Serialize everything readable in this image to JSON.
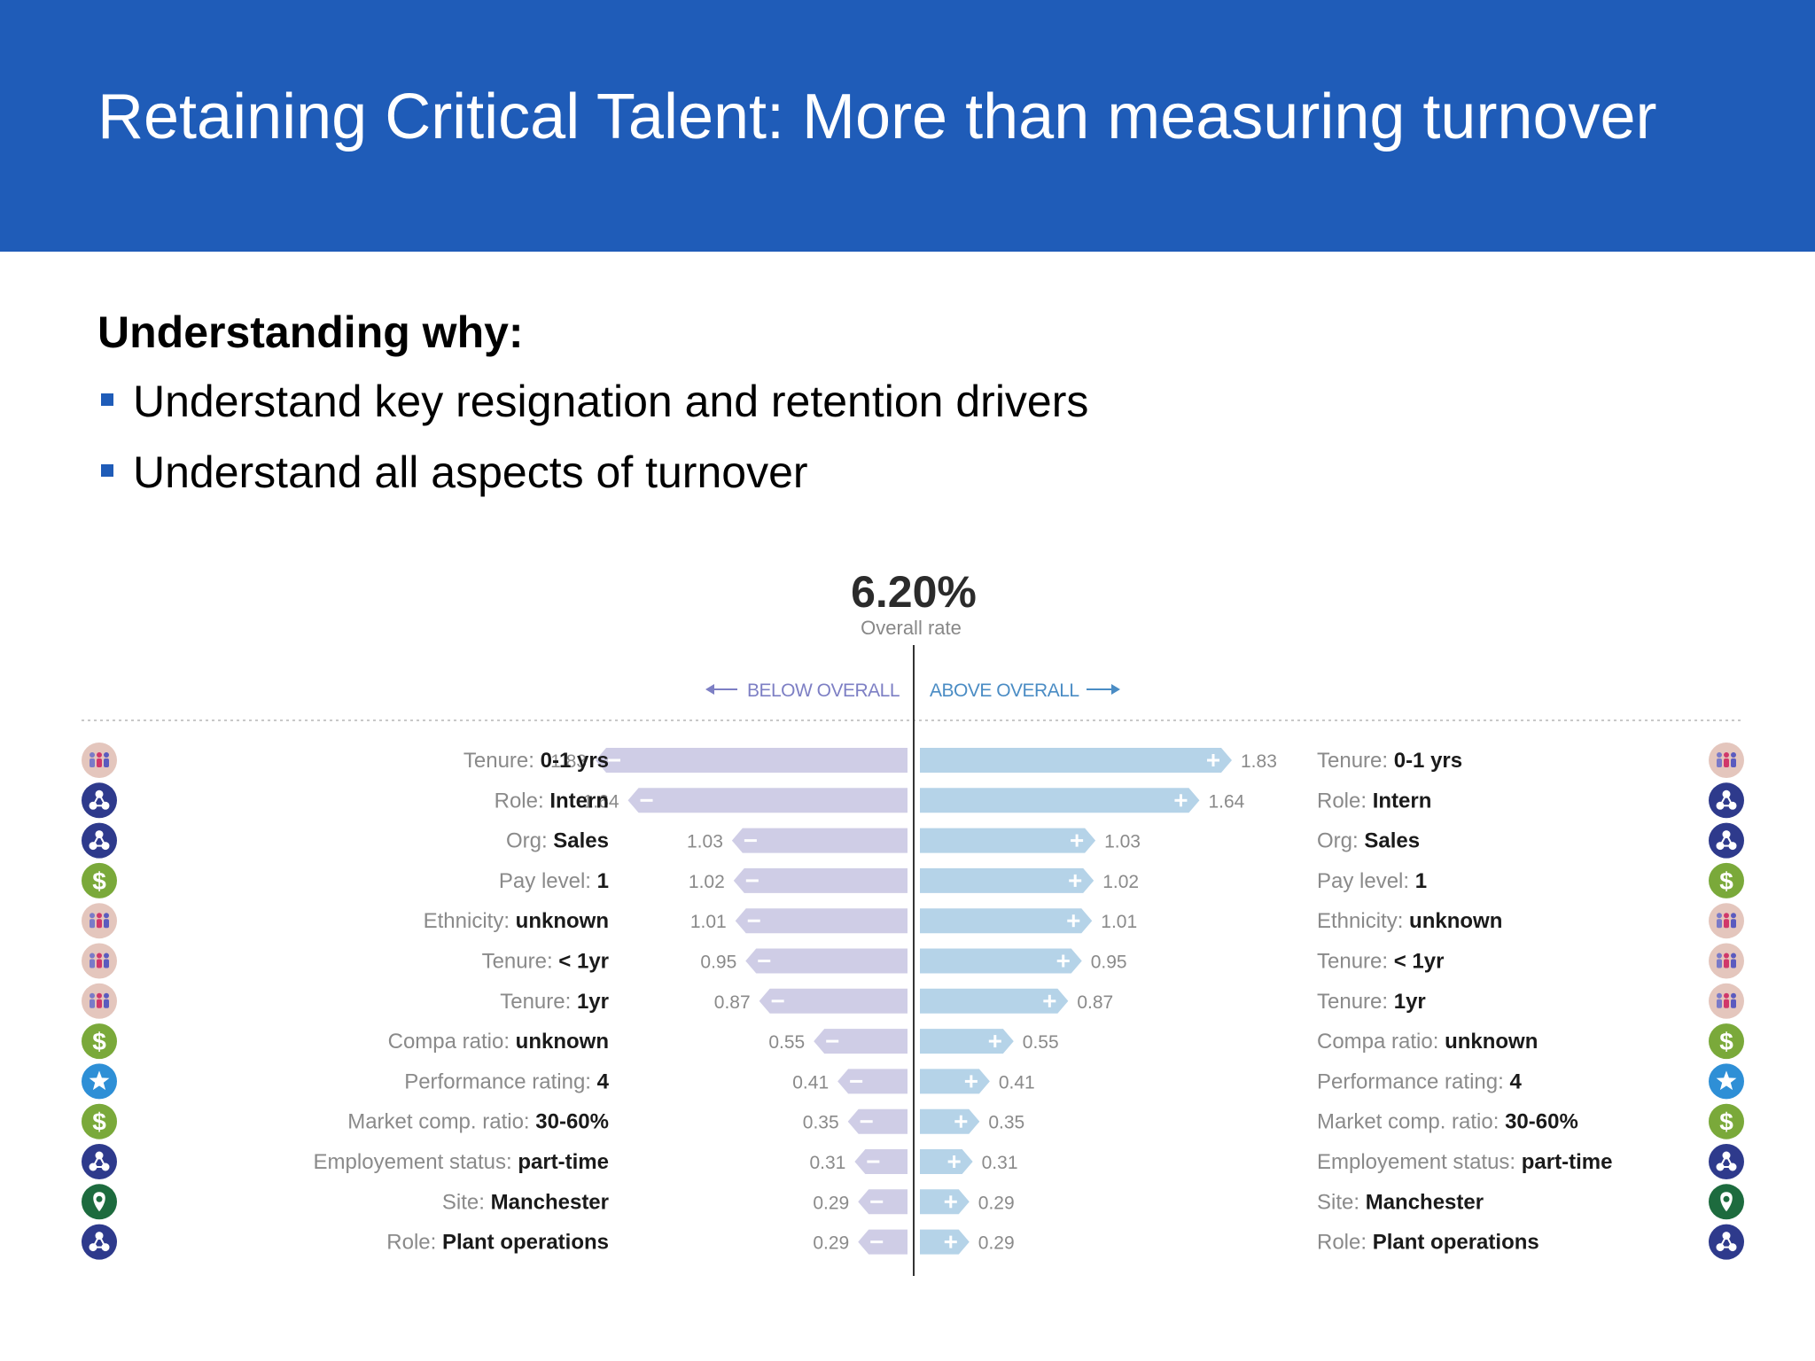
{
  "header": {
    "title": "Retaining Critical Talent: More than measuring turnover"
  },
  "content": {
    "subheading": "Understanding why:",
    "bullets": [
      "Understand key resignation and retention drivers",
      "Understand all aspects of turnover"
    ]
  },
  "colors": {
    "banner": "#1f5cb8",
    "bar_below": "#cfcde6",
    "bar_above": "#b5d3e8",
    "below_label": "#7d7fc4",
    "above_label": "#4a8cc4"
  },
  "chart_data": {
    "type": "bar",
    "headline_value": "6.20%",
    "headline_label": "Overall rate",
    "below_label": "BELOW OVERALL",
    "above_label": "ABOVE OVERALL",
    "xlim": [
      0,
      1.83
    ],
    "grid": false,
    "rows": [
      {
        "prefix": "Tenure:",
        "value_label": "0-1 yrs",
        "below": 1.83,
        "above": 1.83,
        "icon": "people-icon"
      },
      {
        "prefix": "Role:",
        "value_label": "Intern",
        "below": 1.64,
        "above": 1.64,
        "icon": "org-network-icon"
      },
      {
        "prefix": "Org:",
        "value_label": "Sales",
        "below": 1.03,
        "above": 1.03,
        "icon": "org-network-icon"
      },
      {
        "prefix": "Pay level:",
        "value_label": "1",
        "below": 1.02,
        "above": 1.02,
        "icon": "dollar-icon"
      },
      {
        "prefix": "Ethnicity:",
        "value_label": "unknown",
        "below": 1.01,
        "above": 1.01,
        "icon": "people-icon"
      },
      {
        "prefix": "Tenure:",
        "value_label": "< 1yr",
        "below": 0.95,
        "above": 0.95,
        "icon": "people-icon"
      },
      {
        "prefix": "Tenure:",
        "value_label": "1yr",
        "below": 0.87,
        "above": 0.87,
        "icon": "people-icon"
      },
      {
        "prefix": "Compa ratio:",
        "value_label": "unknown",
        "below": 0.55,
        "above": 0.55,
        "icon": "dollar-icon"
      },
      {
        "prefix": "Performance rating:",
        "value_label": "4",
        "below": 0.41,
        "above": 0.41,
        "icon": "star-icon"
      },
      {
        "prefix": "Market comp. ratio:",
        "value_label": "30-60%",
        "below": 0.35,
        "above": 0.35,
        "icon": "dollar-icon"
      },
      {
        "prefix": "Employement status:",
        "value_label": "part-time",
        "below": 0.31,
        "above": 0.31,
        "icon": "org-network-icon"
      },
      {
        "prefix": "Site:",
        "value_label": "Manchester",
        "below": 0.29,
        "above": 0.29,
        "icon": "location-pin-icon"
      },
      {
        "prefix": "Role:",
        "value_label": "Plant operations",
        "below": 0.29,
        "above": 0.29,
        "icon": "org-network-icon"
      }
    ]
  }
}
